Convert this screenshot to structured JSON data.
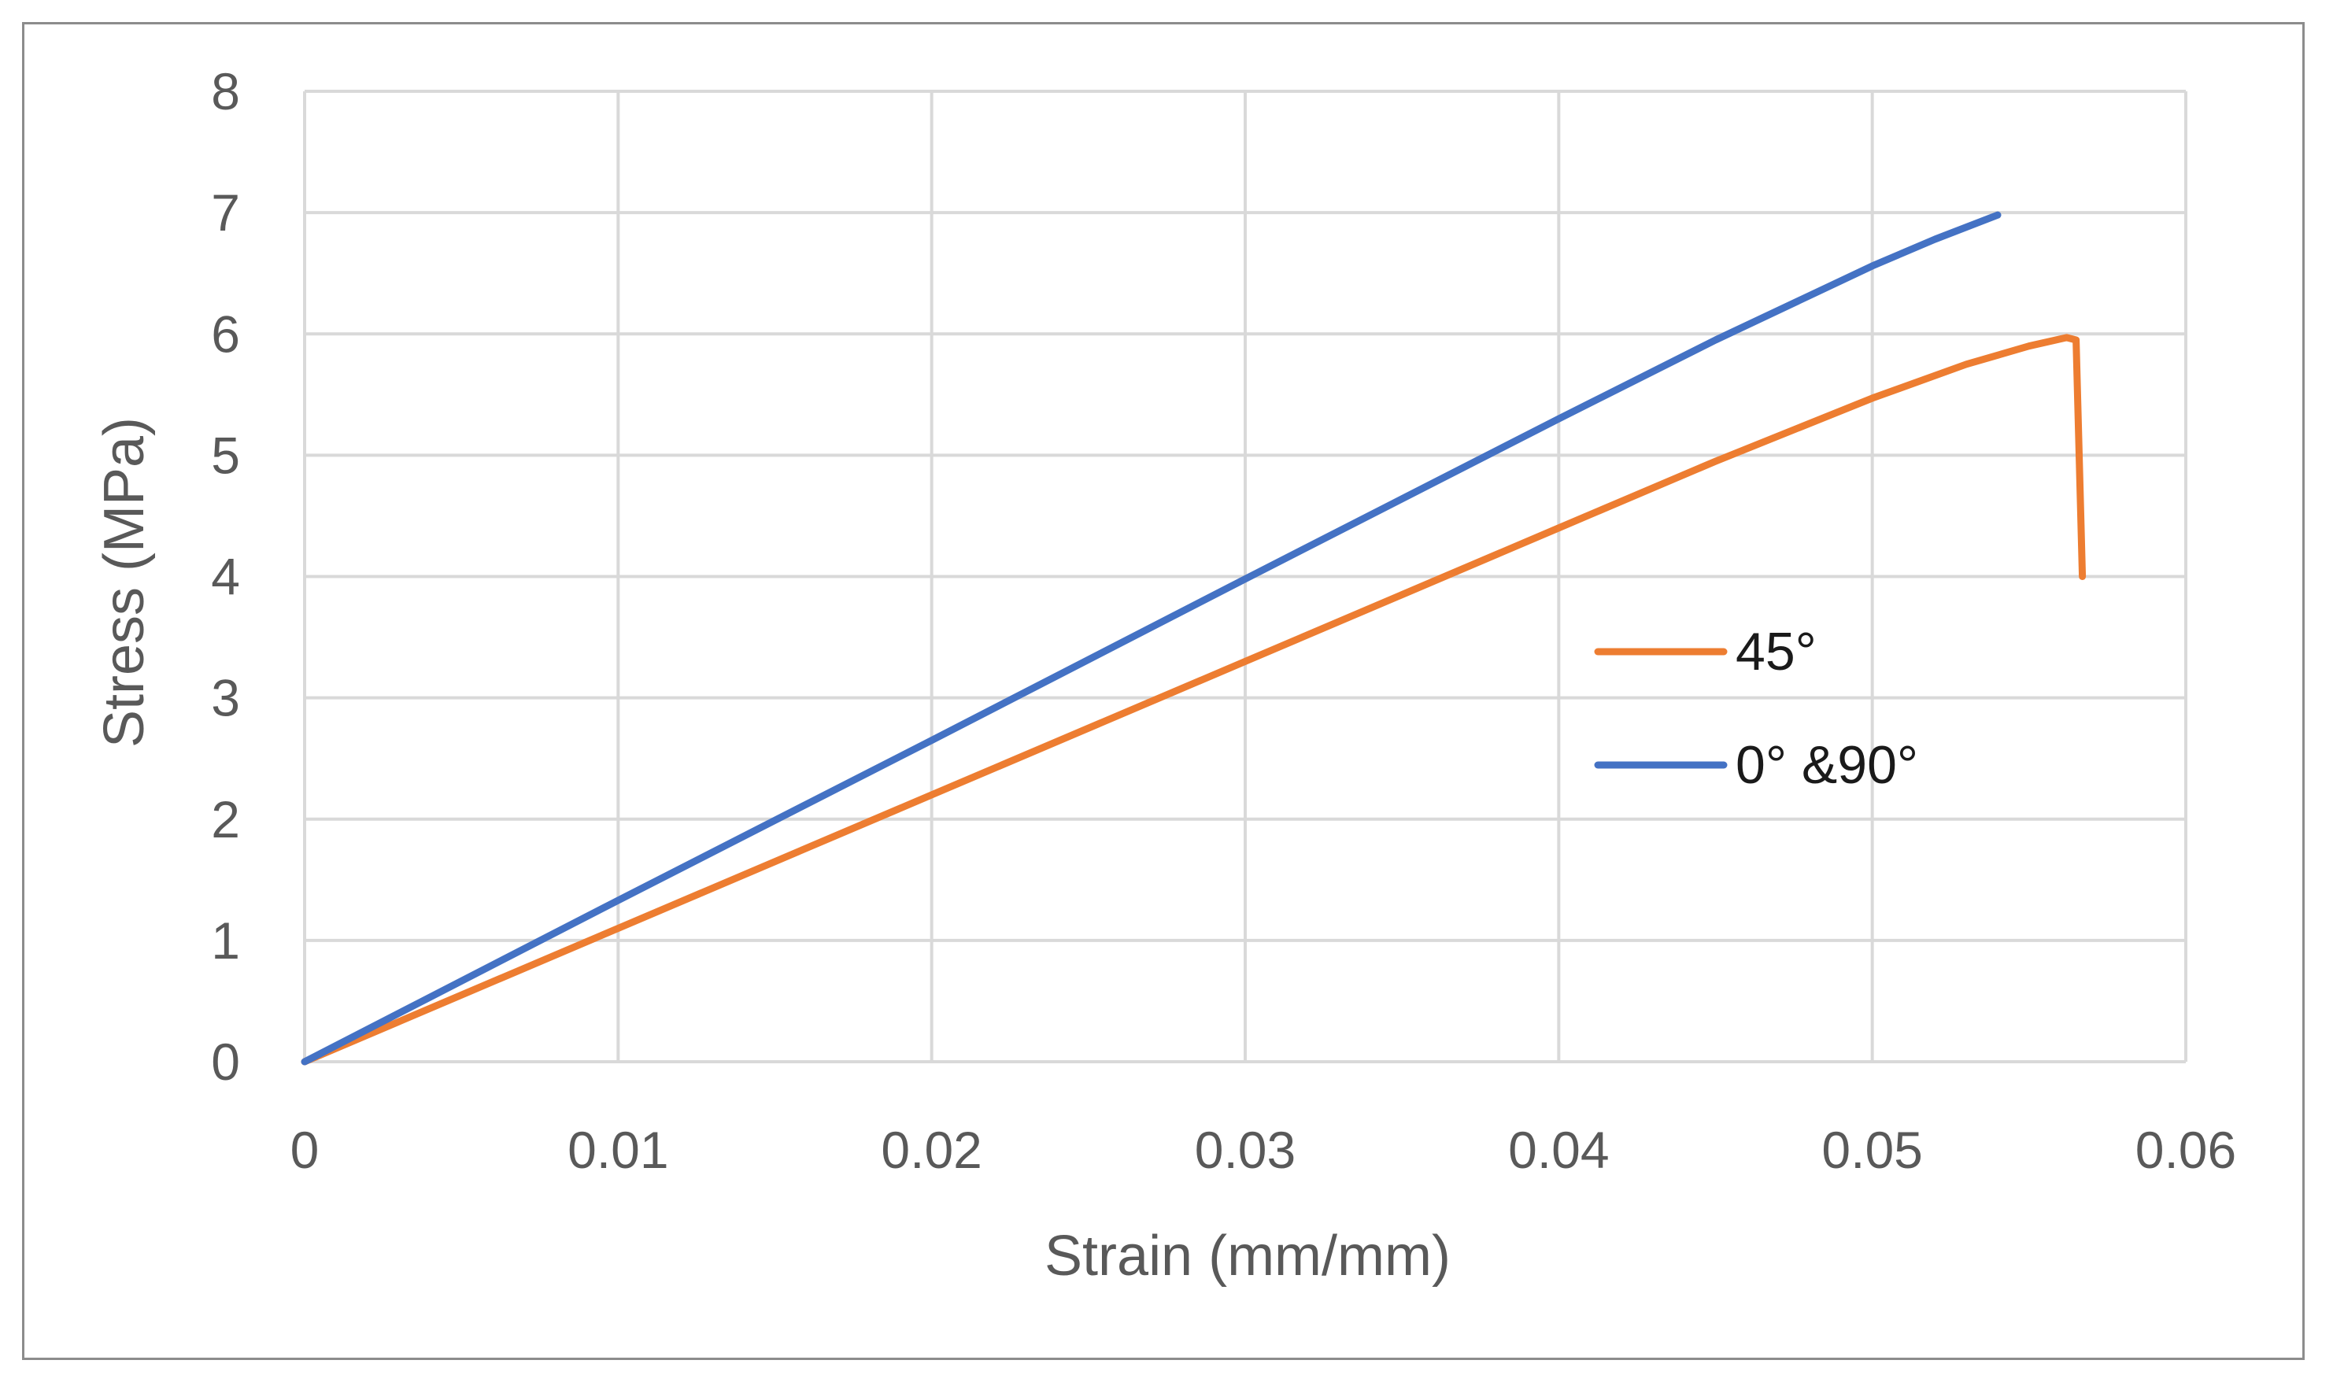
{
  "chart_data": {
    "type": "line",
    "title": "",
    "xlabel": "Strain (mm/mm)",
    "ylabel": "Stress (MPa)",
    "xlim": [
      0,
      0.06
    ],
    "ylim": [
      0,
      8
    ],
    "x_ticks": [
      0,
      0.01,
      0.02,
      0.03,
      0.04,
      0.05,
      0.06
    ],
    "x_tick_labels": [
      "0",
      "0.01",
      "0.02",
      "0.03",
      "0.04",
      "0.05",
      "0.06"
    ],
    "y_ticks": [
      0,
      1,
      2,
      3,
      4,
      5,
      6,
      7,
      8
    ],
    "y_tick_labels": [
      "0",
      "1",
      "2",
      "3",
      "4",
      "5",
      "6",
      "7",
      "8"
    ],
    "grid": true,
    "legend_position": "right",
    "series": [
      {
        "name": "45°",
        "color": "#ED7D31",
        "x": [
          0,
          0.01,
          0.02,
          0.03,
          0.04,
          0.045,
          0.05,
          0.053,
          0.055,
          0.0562,
          0.0565,
          0.0567
        ],
        "y": [
          0,
          1.1,
          2.2,
          3.3,
          4.4,
          4.95,
          5.47,
          5.75,
          5.9,
          5.97,
          5.95,
          4.0
        ]
      },
      {
        "name": "0° &90°",
        "color": "#4472C4",
        "x": [
          0,
          0.01,
          0.02,
          0.03,
          0.04,
          0.045,
          0.05,
          0.052,
          0.054
        ],
        "y": [
          0,
          1.33,
          2.65,
          3.98,
          5.3,
          5.95,
          6.56,
          6.78,
          6.98
        ]
      }
    ]
  }
}
